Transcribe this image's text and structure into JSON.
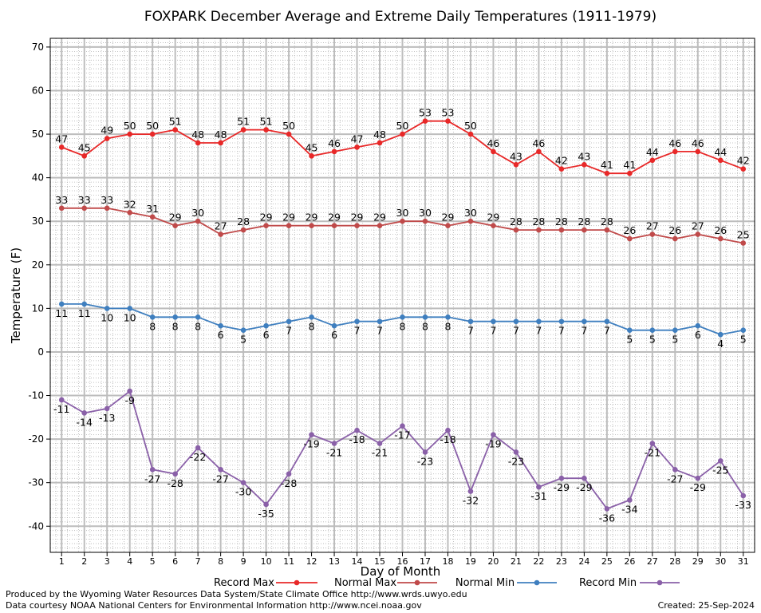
{
  "chart_data": {
    "type": "line",
    "title": "FOXPARK December Average and Extreme Daily Temperatures (1911-1979)",
    "xlabel": "Day of Month",
    "ylabel": "Temperature (F)",
    "x": [
      1,
      2,
      3,
      4,
      5,
      6,
      7,
      8,
      9,
      10,
      11,
      12,
      13,
      14,
      15,
      16,
      17,
      18,
      19,
      20,
      21,
      22,
      23,
      24,
      25,
      26,
      27,
      28,
      29,
      30,
      31
    ],
    "xlim": [
      0.5,
      31.5
    ],
    "ylim": [
      -46,
      72
    ],
    "yticks": [
      -40,
      -30,
      -20,
      -10,
      0,
      10,
      20,
      30,
      40,
      50,
      60,
      70
    ],
    "grid": true,
    "legend_position": "bottom",
    "series": [
      {
        "name": "Record Max",
        "color": "#e82828",
        "values": [
          47,
          45,
          49,
          50,
          50,
          51,
          48,
          48,
          51,
          51,
          50,
          45,
          46,
          47,
          48,
          50,
          53,
          53,
          50,
          46,
          43,
          46,
          42,
          43,
          41,
          41,
          44,
          46,
          46,
          44,
          42
        ]
      },
      {
        "name": "Normal Max",
        "color": "#c04a4a",
        "values": [
          33,
          33,
          33,
          32,
          31,
          29,
          30,
          27,
          28,
          29,
          29,
          29,
          29,
          29,
          29,
          30,
          30,
          29,
          30,
          29,
          28,
          28,
          28,
          28,
          28,
          26,
          27,
          26,
          27,
          26,
          25
        ]
      },
      {
        "name": "Normal Min",
        "color": "#3f7fbf",
        "values": [
          11,
          11,
          10,
          10,
          8,
          8,
          8,
          6,
          5,
          6,
          7,
          8,
          6,
          7,
          7,
          8,
          8,
          8,
          7,
          7,
          7,
          7,
          7,
          7,
          7,
          5,
          5,
          5,
          6,
          4,
          5
        ]
      },
      {
        "name": "Record Min",
        "color": "#8a60a8",
        "values": [
          -11,
          -14,
          -13,
          -9,
          -27,
          -28,
          -22,
          -27,
          -30,
          -35,
          -28,
          -19,
          -21,
          -18,
          -21,
          -17,
          -23,
          -18,
          -32,
          -19,
          -23,
          -31,
          -29,
          -29,
          -36,
          -34,
          -21,
          -27,
          -29,
          -25,
          -33
        ]
      }
    ]
  },
  "footer": {
    "produced_by": "Produced by the Wyoming Water Resources Data System/State Climate Office http://www.wrds.uwyo.edu",
    "data_courtesy": "Data courtesy NOAA National Centers for Environmental Information http://www.ncei.noaa.gov",
    "created": "Created:  25-Sep-2024"
  }
}
